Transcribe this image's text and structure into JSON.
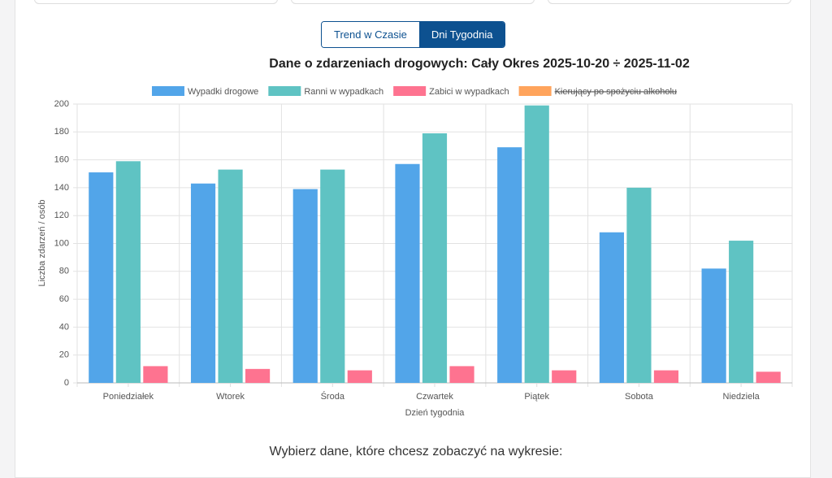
{
  "tabs": {
    "items": [
      "Trend w Czasie",
      "Dni Tygodnia"
    ],
    "active": 1
  },
  "chart_data": {
    "type": "bar",
    "title": "Dane o zdarzeniach drogowych: Cały Okres 2025-10-20 ÷ 2025-11-02",
    "x_label": "Dzień tygodnia",
    "y_label": "Liczba zdarzeń / osób",
    "categories": [
      "Poniedziałek",
      "Wtorek",
      "Środa",
      "Czwartek",
      "Piątek",
      "Sobota",
      "Niedziela"
    ],
    "series": [
      {
        "name": "Wypadki drogowe",
        "color": "#52a5e9",
        "values": [
          151,
          143,
          139,
          157,
          169,
          108,
          82
        ]
      },
      {
        "name": "Ranni w wypadkach",
        "color": "#5fc3c3",
        "values": [
          159,
          153,
          153,
          179,
          199,
          140,
          102
        ]
      },
      {
        "name": "Zabici w wypadkach",
        "color": "#fe7390",
        "values": [
          12,
          10,
          9,
          12,
          9,
          9,
          8
        ]
      },
      {
        "name": "Kierujący po spożyciu alkoholu",
        "color": "#ffa45c",
        "hidden": true,
        "values": [
          null,
          null,
          null,
          null,
          null,
          null,
          null
        ]
      }
    ],
    "ylim": [
      0,
      200
    ],
    "yticks": [
      0,
      20,
      40,
      60,
      80,
      100,
      120,
      140,
      160,
      180,
      200
    ],
    "grid": true,
    "legend": "top"
  },
  "prompt": "Wybierz dane, które chcesz zobaczyć na wykresie:"
}
